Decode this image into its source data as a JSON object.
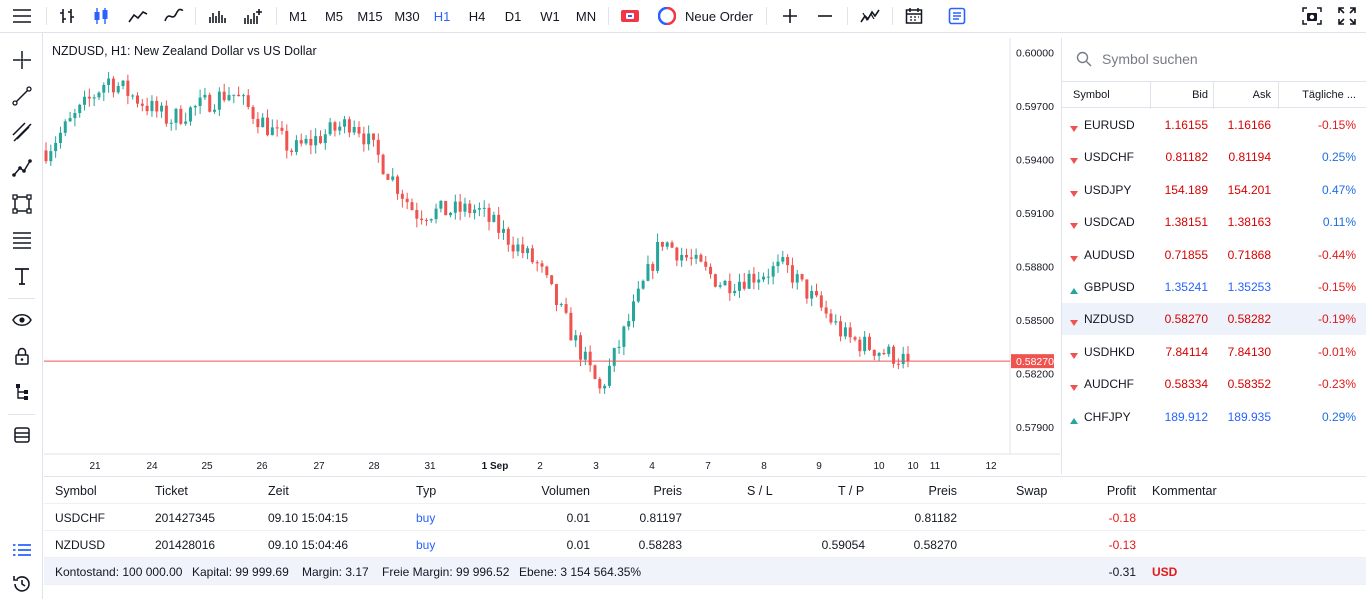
{
  "toolbar": {
    "timeframes": [
      "M1",
      "M5",
      "M15",
      "M30",
      "H1",
      "H4",
      "D1",
      "W1",
      "MN"
    ],
    "active_timeframe": "H1",
    "new_order_label": "Neue Order",
    "icons": [
      "menu-icon",
      "bar-chart-icon",
      "candles-icon",
      "line-chart-icon",
      "area-chart-icon",
      "volume-icon",
      "indicators-icon",
      "one-click-icon",
      "new-order-icon",
      "zoom-in-icon",
      "zoom-out-icon",
      "indicator-icon",
      "calendar-icon",
      "notes-icon",
      "screenshot-icon",
      "fullscreen-icon"
    ]
  },
  "left_tools": [
    "crosshair-icon",
    "trend-line-icon",
    "channel-icon",
    "polyline-icon",
    "rectangle-icon",
    "fibonacci-icon",
    "text-icon",
    "eye-icon",
    "lock-icon",
    "object-tree-icon",
    "layers-icon",
    "list-icon",
    "history-icon"
  ],
  "chart": {
    "title": "NZDUSD, H1: New Zealand Dollar vs US Dollar",
    "price_labels": [
      "0.60000",
      "0.59700",
      "0.59400",
      "0.59100",
      "0.58800",
      "0.58500",
      "0.58200",
      "0.57900"
    ],
    "current_price": "0.58270",
    "date_labels": [
      "21",
      "24",
      "25",
      "26",
      "27",
      "28",
      "31",
      "1 Sep",
      "2",
      "3",
      "4",
      "7",
      "8",
      "9",
      "10",
      "10",
      "11",
      "12"
    ]
  },
  "chart_data": {
    "type": "candlestick",
    "symbol": "NZDUSD",
    "timeframe": "H1",
    "ylim": [
      0.5775,
      0.6008
    ],
    "last": 0.5827,
    "up_color": "#26a69a",
    "down_color": "#ef5350",
    "series": [
      {
        "x": "21",
        "close": 0.5945
      },
      {
        "x": "24",
        "close": 0.5985
      },
      {
        "x": "25",
        "close": 0.5962
      },
      {
        "x": "26",
        "close": 0.5978
      },
      {
        "x": "27",
        "close": 0.5945
      },
      {
        "x": "28",
        "close": 0.5962
      },
      {
        "x": "31",
        "close": 0.591
      },
      {
        "x": "1 Sep",
        "close": 0.5912
      },
      {
        "x": "2",
        "close": 0.588
      },
      {
        "x": "3",
        "close": 0.581
      },
      {
        "x": "4",
        "close": 0.5895
      },
      {
        "x": "7",
        "close": 0.587
      },
      {
        "x": "8",
        "close": 0.588
      },
      {
        "x": "9",
        "close": 0.584
      },
      {
        "x": "10",
        "close": 0.5827
      }
    ]
  },
  "watchlist": {
    "search_placeholder": "Symbol suchen",
    "headers": {
      "symbol": "Symbol",
      "bid": "Bid",
      "ask": "Ask",
      "daily": "Tägliche ..."
    },
    "rows": [
      {
        "symbol": "EURUSD",
        "bid": "1.16155",
        "ask": "1.16166",
        "change": "-0.15%",
        "dir": "down",
        "bid_color": "red",
        "change_sign": "neg"
      },
      {
        "symbol": "USDCHF",
        "bid": "0.81182",
        "ask": "0.81194",
        "change": "0.25%",
        "dir": "down",
        "bid_color": "red",
        "change_sign": "pos"
      },
      {
        "symbol": "USDJPY",
        "bid": "154.189",
        "ask": "154.201",
        "change": "0.47%",
        "dir": "down",
        "bid_color": "red",
        "change_sign": "pos"
      },
      {
        "symbol": "USDCAD",
        "bid": "1.38151",
        "ask": "1.38163",
        "change": "0.11%",
        "dir": "down",
        "bid_color": "red",
        "change_sign": "pos"
      },
      {
        "symbol": "AUDUSD",
        "bid": "0.71855",
        "ask": "0.71868",
        "change": "-0.44%",
        "dir": "down",
        "bid_color": "red",
        "change_sign": "neg"
      },
      {
        "symbol": "GBPUSD",
        "bid": "1.35241",
        "ask": "1.35253",
        "change": "-0.15%",
        "dir": "up",
        "bid_color": "blue",
        "change_sign": "neg"
      },
      {
        "symbol": "NZDUSD",
        "bid": "0.58270",
        "ask": "0.58282",
        "change": "-0.19%",
        "dir": "down",
        "bid_color": "red",
        "change_sign": "neg"
      },
      {
        "symbol": "USDHKD",
        "bid": "7.84114",
        "ask": "7.84130",
        "change": "-0.01%",
        "dir": "down",
        "bid_color": "red",
        "change_sign": "neg"
      },
      {
        "symbol": "AUDCHF",
        "bid": "0.58334",
        "ask": "0.58352",
        "change": "-0.23%",
        "dir": "down",
        "bid_color": "red",
        "change_sign": "neg"
      },
      {
        "symbol": "CHFJPY",
        "bid": "189.912",
        "ask": "189.935",
        "change": "0.29%",
        "dir": "up",
        "bid_color": "blue",
        "change_sign": "pos"
      }
    ],
    "selected": "NZDUSD"
  },
  "positions": {
    "headers": {
      "symbol": "Symbol",
      "ticket": "Ticket",
      "time": "Zeit",
      "type": "Typ",
      "volume": "Volumen",
      "price": "Preis",
      "sl": "S / L",
      "tp": "T / P",
      "cur_price": "Preis",
      "swap": "Swap",
      "profit": "Profit",
      "comment": "Kommentar"
    },
    "rows": [
      {
        "symbol": "USDCHF",
        "ticket": "201427345",
        "time": "09.10 15:04:15",
        "type": "buy",
        "volume": "0.01",
        "price": "0.81197",
        "sl": "",
        "tp": "",
        "cur_price": "0.81182",
        "swap": "",
        "profit": "-0.18",
        "comment": ""
      },
      {
        "symbol": "NZDUSD",
        "ticket": "201428016",
        "time": "09.10 15:04:46",
        "type": "buy",
        "volume": "0.01",
        "price": "0.58283",
        "sl": "",
        "tp": "0.59054",
        "cur_price": "0.58270",
        "swap": "",
        "profit": "-0.13",
        "comment": ""
      }
    ],
    "footer": {
      "balance": "Kontostand: 100 000.00",
      "equity": "Kapital: 99 999.69",
      "margin": "Margin: 3.17",
      "free_margin": "Freie Margin: 99 996.52",
      "level": "Ebene: 3 154 564.35%",
      "total_profit": "-0.31",
      "currency": "USD"
    }
  }
}
